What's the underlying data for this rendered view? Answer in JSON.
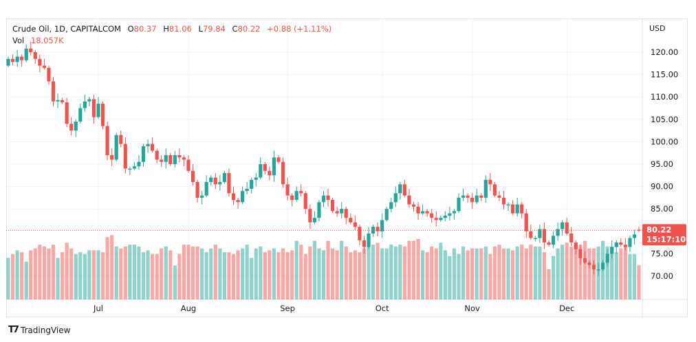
{
  "legend": {
    "symbol": "Crude Oil, 1D, CAPITALCOM",
    "o_label": "O",
    "o": "80.37",
    "h_label": "H",
    "h": "81.06",
    "l_label": "L",
    "l": "79.84",
    "c_label": "C",
    "c": "80.22",
    "change": "+0.88 (+1.11%)",
    "vol_label": "Vol",
    "vol": "18.057K"
  },
  "price_label": {
    "price": "80.22",
    "countdown": "15:17:10"
  },
  "brand": "TradingView",
  "colors": {
    "up": "#26a69a",
    "down": "#ef5350",
    "grid": "#f0f3fa",
    "border": "#e0e3eb",
    "text": "#131722"
  },
  "chart_data": {
    "type": "candlestick",
    "title": "Crude Oil, 1D, CAPITALCOM",
    "currency": "USD",
    "ylim": [
      65,
      123
    ],
    "y_ticks": [
      "120.00",
      "115.00",
      "110.00",
      "105.00",
      "100.00",
      "95.00",
      "90.00",
      "85.00",
      "75.00",
      "70.00"
    ],
    "y_tick_values": [
      120,
      115,
      110,
      105,
      100,
      95,
      90,
      85,
      75,
      70
    ],
    "x_ticks": [
      {
        "label": "Jul",
        "index": 20
      },
      {
        "label": "Aug",
        "index": 40
      },
      {
        "label": "Sep",
        "index": 62
      },
      {
        "label": "Oct",
        "index": 83
      },
      {
        "label": "Nov",
        "index": 103
      },
      {
        "label": "Dec",
        "index": 124
      }
    ],
    "first_open": 117,
    "last_candle": {
      "o": 80.37,
      "h": 81.06,
      "l": 79.84,
      "c": 80.22
    },
    "closes": [
      118.5,
      117.8,
      119,
      118.2,
      120.8,
      120,
      118.5,
      117,
      116.5,
      113.5,
      109,
      109.3,
      108.8,
      104,
      102.5,
      104.5,
      107.5,
      109,
      109.5,
      105.5,
      108.5,
      103.5,
      97,
      96,
      101.5,
      99.5,
      94,
      94,
      94.5,
      95.5,
      99,
      99.5,
      98,
      96,
      95.5,
      97,
      95,
      97,
      96.5,
      96,
      93.5,
      91,
      87.5,
      88,
      91,
      92,
      90.5,
      91,
      93,
      88.5,
      87,
      86.5,
      89,
      89.5,
      91.5,
      92,
      95,
      93.5,
      92.5,
      96.5,
      95.5,
      90.5,
      88,
      87,
      89,
      88.5,
      85,
      82,
      83,
      86.5,
      88,
      87,
      84.5,
      84,
      85,
      83,
      82,
      81,
      78,
      76.5,
      79.5,
      81,
      80,
      82.5,
      85,
      86.5,
      88.5,
      90.5,
      88,
      86,
      85.5,
      84,
      84.5,
      84,
      83,
      82.5,
      83,
      83.5,
      84,
      84.5,
      87.5,
      88,
      87.5,
      86.5,
      88,
      87.5,
      91.5,
      90.5,
      88,
      87.5,
      86,
      86,
      84,
      86,
      84,
      80,
      78.5,
      78.5,
      80.5,
      77.5,
      77,
      79,
      80.5,
      82,
      79.5,
      77.5,
      76,
      74,
      73,
      72.5,
      71.5,
      71.5,
      73,
      75,
      76.5,
      77.5,
      77,
      76.5,
      78.5,
      79.3,
      80.22
    ],
    "volume_k": [
      22,
      24,
      26,
      25,
      20,
      26,
      27,
      29,
      28,
      27,
      29,
      22,
      25,
      30,
      27,
      24,
      25,
      24,
      26,
      26,
      26,
      25,
      33,
      34,
      28,
      27,
      28,
      29,
      29,
      28,
      25,
      26,
      24,
      24,
      27,
      28,
      26,
      18,
      24,
      29,
      29,
      28,
      28,
      27,
      25,
      27,
      29,
      27,
      25,
      25,
      24,
      26,
      27,
      29,
      22,
      27,
      28,
      25,
      26,
      27,
      25,
      27,
      25,
      26,
      31,
      29,
      24,
      28,
      31,
      27,
      26,
      31,
      27,
      26,
      31,
      28,
      25,
      26,
      25,
      27,
      28,
      29,
      30,
      27,
      27,
      29,
      28,
      29,
      28,
      31,
      31,
      32,
      26,
      25,
      28,
      27,
      30,
      26,
      23,
      27,
      24,
      28,
      26,
      27,
      27,
      27,
      28,
      24,
      28,
      29,
      27,
      27,
      26,
      28,
      29,
      27,
      29,
      28,
      28,
      25,
      16,
      23,
      27,
      29,
      30,
      28,
      29,
      29,
      31,
      27,
      27,
      28,
      31,
      28,
      28,
      25,
      27,
      29,
      24,
      24,
      18.057
    ]
  }
}
